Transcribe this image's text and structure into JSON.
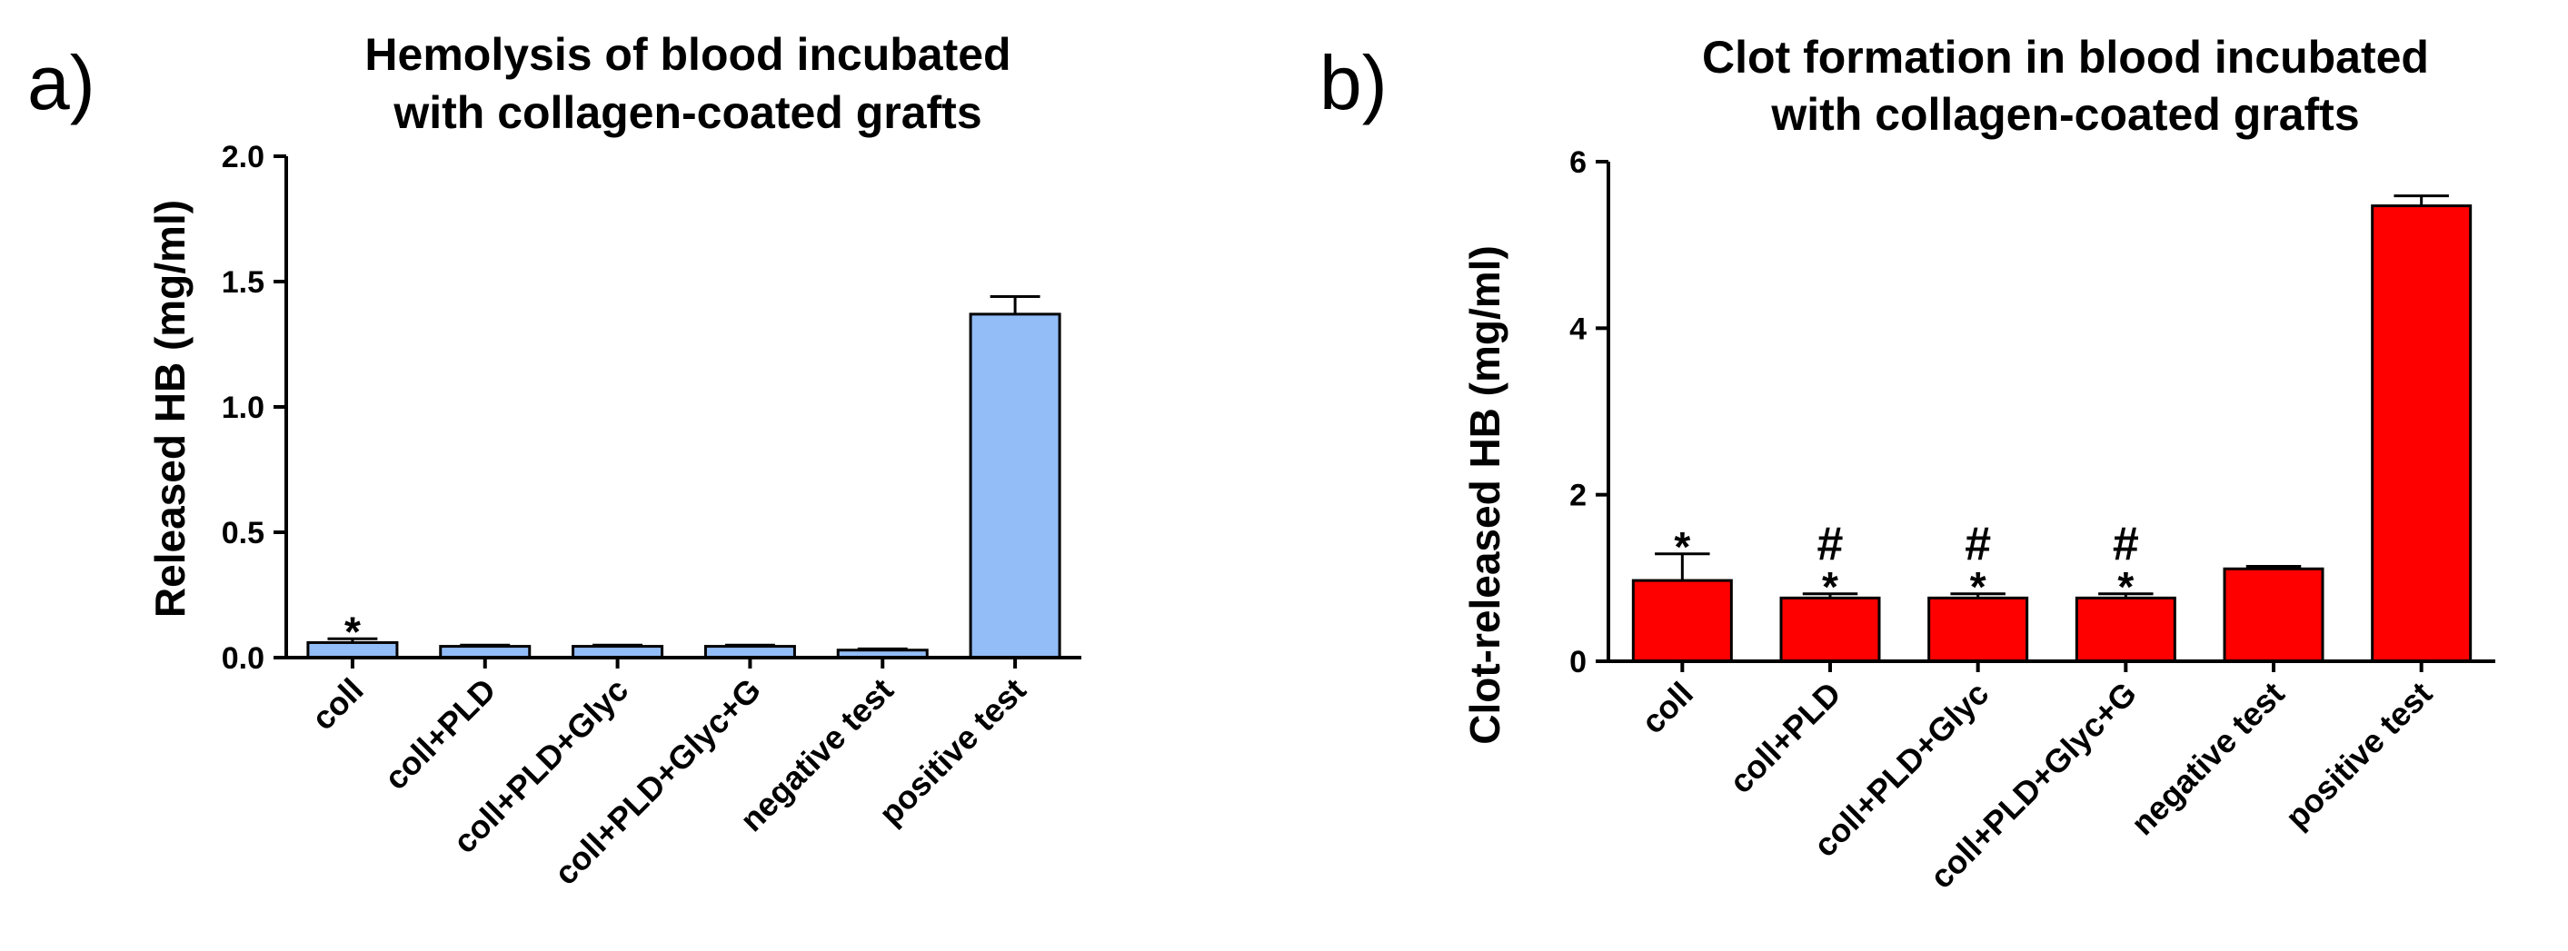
{
  "chart_data": [
    {
      "panel": "a)",
      "type": "bar",
      "title": [
        "Hemolysis of blood incubated",
        "with collagen-coated grafts"
      ],
      "xlabel": "",
      "ylabel": "Released HB (mg/ml)",
      "ylim": [
        0,
        2.0
      ],
      "yticks": [
        "0.0",
        "0.5",
        "1.0",
        "1.5",
        "2.0"
      ],
      "ytick_values": [
        0,
        0.5,
        1.0,
        1.5,
        2.0
      ],
      "categories": [
        "coll",
        "coll+PLD",
        "coll+PLD+Glyc",
        "coll+PLD+Glyc+G",
        "negative test",
        "positive test"
      ],
      "values": [
        0.06,
        0.045,
        0.045,
        0.045,
        0.03,
        1.37
      ],
      "errors": [
        0.015,
        0.005,
        0.005,
        0.005,
        0.005,
        0.07
      ],
      "annotations": [
        [
          "*"
        ],
        [],
        [],
        [],
        [],
        []
      ],
      "bar_color": "#92bdf7",
      "grid": false
    },
    {
      "panel": "b)",
      "type": "bar",
      "title": [
        "Clot formation in blood incubated",
        "with collagen-coated grafts"
      ],
      "xlabel": "",
      "ylabel": "Clot-released HB (mg/ml)",
      "ylim": [
        0,
        6
      ],
      "yticks": [
        "0",
        "2",
        "4",
        "6"
      ],
      "ytick_values": [
        0,
        2,
        4,
        6
      ],
      "categories": [
        "coll",
        "coll+PLD",
        "coll+PLD+Glyc",
        "coll+PLD+Glyc+G",
        "negative test",
        "positive test"
      ],
      "values": [
        0.97,
        0.76,
        0.76,
        0.76,
        1.11,
        5.47
      ],
      "errors": [
        0.32,
        0.05,
        0.05,
        0.05,
        0.03,
        0.12
      ],
      "annotations": [
        [
          "*"
        ],
        [
          "#",
          "*"
        ],
        [
          "#",
          "*"
        ],
        [
          "#",
          "*"
        ],
        [],
        []
      ],
      "bar_color": "#ff0000",
      "grid": false
    }
  ]
}
